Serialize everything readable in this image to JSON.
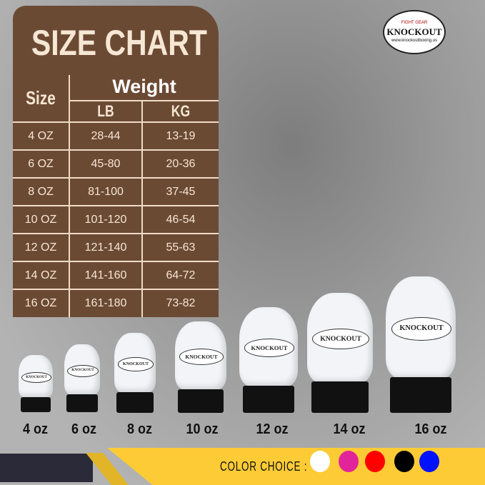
{
  "title": "SIZE CHART",
  "headers": {
    "size": "Size",
    "weight": "Weight",
    "lb": "LB",
    "kg": "KG"
  },
  "rows": [
    {
      "size": "4 OZ",
      "lb": "28-44",
      "kg": "13-19"
    },
    {
      "size": "6 OZ",
      "lb": "45-80",
      "kg": "20-36"
    },
    {
      "size": "8 OZ",
      "lb": "81-100",
      "kg": "37-45"
    },
    {
      "size": "10 OZ",
      "lb": "101-120",
      "kg": "46-54"
    },
    {
      "size": "12 OZ",
      "lb": "121-140",
      "kg": "55-63"
    },
    {
      "size": "14 OZ",
      "lb": "141-160",
      "kg": "64-72"
    },
    {
      "size": "16 OZ",
      "lb": "161-180",
      "kg": "73-82"
    }
  ],
  "logo": {
    "brand": "KNOCKOUT",
    "tagline_top": "FIGHT GEAR",
    "tagline_bottom": "MADE 4 FIGHTERS",
    "url": "www.knockoutboxing.us"
  },
  "gloves": [
    {
      "label": "4 oz",
      "brand": "KNOCKOUT"
    },
    {
      "label": "6 oz",
      "brand": "KNOCKOUT"
    },
    {
      "label": "8 oz",
      "brand": "KNOCKOUT"
    },
    {
      "label": "10 oz",
      "brand": "KNOCKOUT"
    },
    {
      "label": "12 oz",
      "brand": "KNOCKOUT"
    },
    {
      "label": "14 oz",
      "brand": "KNOCKOUT"
    },
    {
      "label": "16 oz",
      "brand": "KNOCKOUT"
    }
  ],
  "color_choice": {
    "label": "COLOR CHOICE :",
    "colors": [
      {
        "name": "white",
        "hex": "#ffffff"
      },
      {
        "name": "pink",
        "hex": "#e2249a"
      },
      {
        "name": "red",
        "hex": "#ff0000"
      },
      {
        "name": "black",
        "hex": "#000000"
      },
      {
        "name": "blue",
        "hex": "#0011ff"
      }
    ]
  }
}
